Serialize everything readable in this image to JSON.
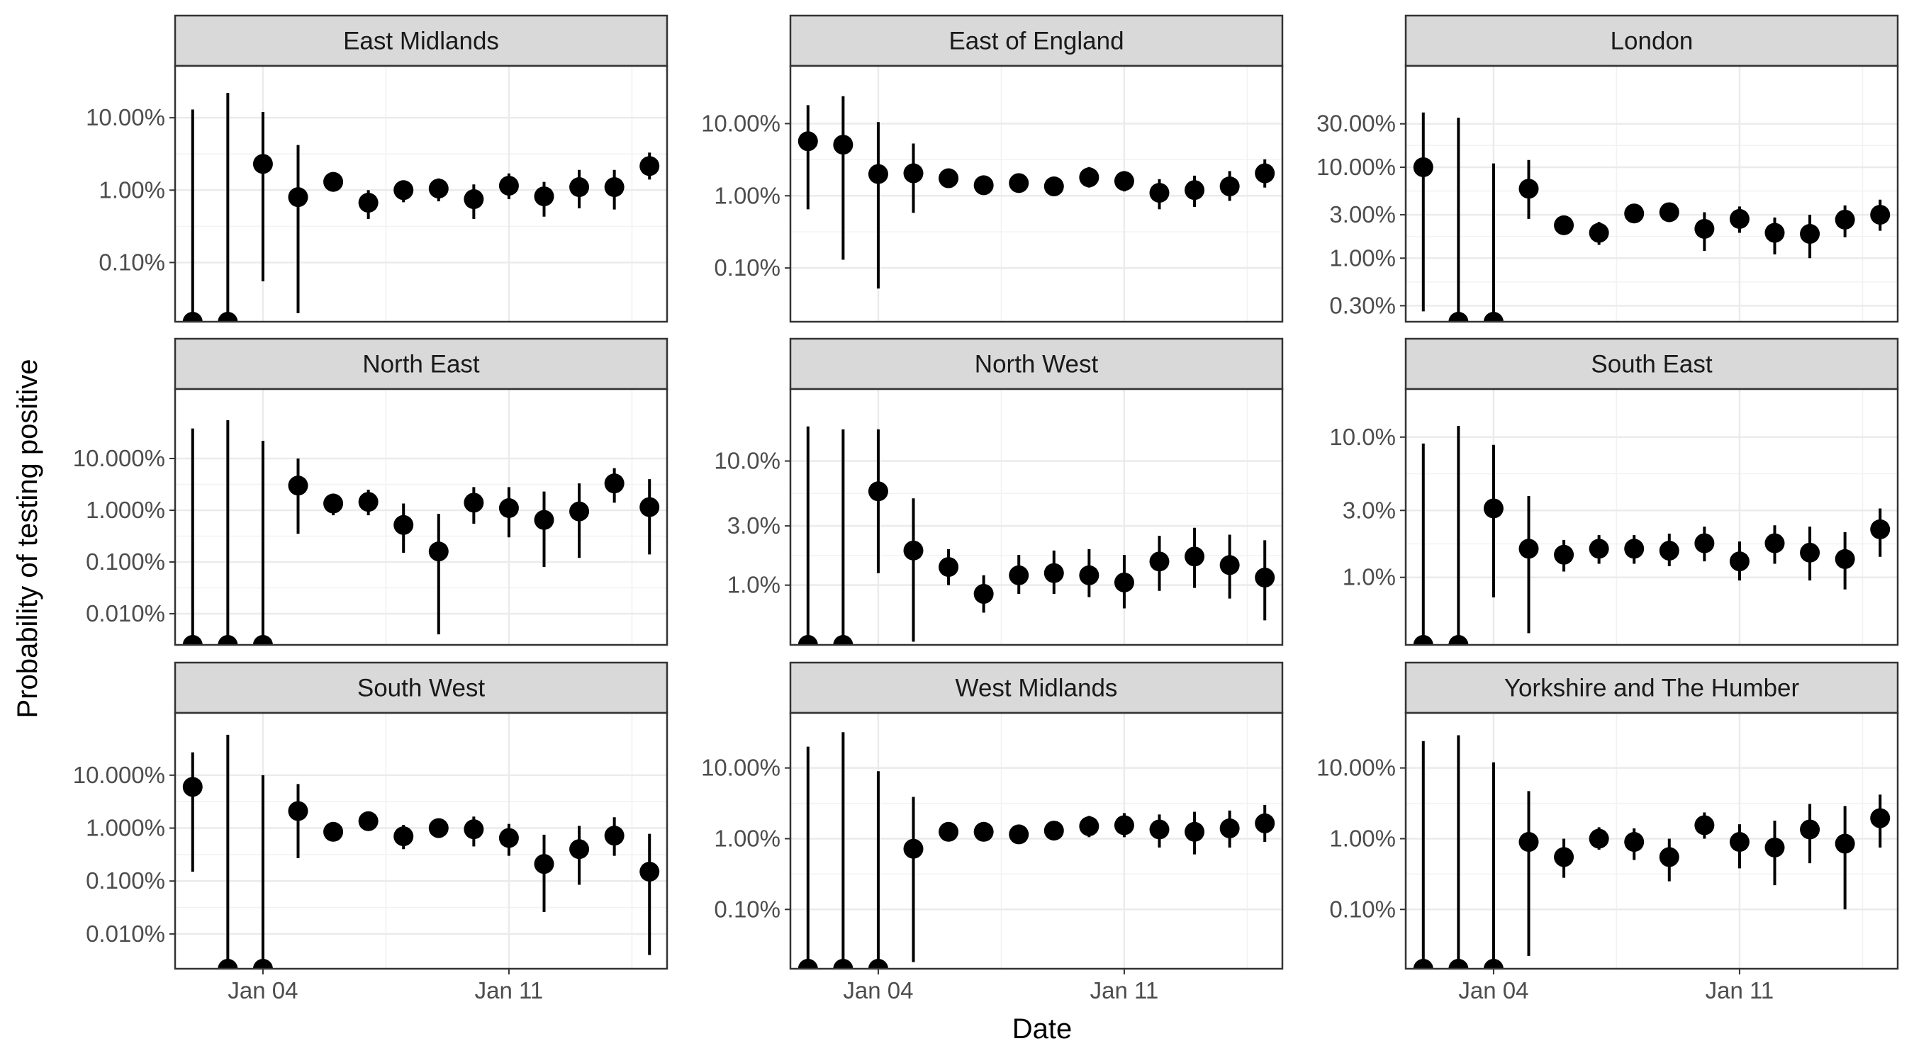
{
  "chart_data": {
    "type": "scatter",
    "ylabel": "Probability of testing positive",
    "xlabel": "Date",
    "x_tick_labels": [
      "Jan 04",
      "Jan 11"
    ],
    "x_tick_days": [
      4,
      11
    ],
    "x_range_days": [
      1.5,
      15.5
    ],
    "y_scale": "log10",
    "grid": true,
    "facets": [
      {
        "label": "East Midlands",
        "ylim_percent": [
          0.0152,
          52
        ],
        "y_ticks": [
          {
            "value": 0.1,
            "label": "0.10%"
          },
          {
            "value": 1,
            "label": "1.00%"
          },
          {
            "value": 10,
            "label": "10.00%"
          }
        ],
        "points": [
          {
            "day": 2,
            "est": 0.0152,
            "lo": 0.0152,
            "hi": 13
          },
          {
            "day": 3,
            "est": 0.0152,
            "lo": 0.0152,
            "hi": 22
          },
          {
            "day": 4,
            "est": 2.3,
            "lo": 0.055,
            "hi": 12
          },
          {
            "day": 5,
            "est": 0.8,
            "lo": 0.02,
            "hi": 4.2
          },
          {
            "day": 6,
            "est": 1.3,
            "lo": 0.95,
            "hi": 1.7
          },
          {
            "day": 7,
            "est": 0.67,
            "lo": 0.4,
            "hi": 1.0
          },
          {
            "day": 8,
            "est": 1.0,
            "lo": 0.68,
            "hi": 1.35
          },
          {
            "day": 9,
            "est": 1.05,
            "lo": 0.7,
            "hi": 1.45
          },
          {
            "day": 10,
            "est": 0.75,
            "lo": 0.4,
            "hi": 1.2
          },
          {
            "day": 11,
            "est": 1.15,
            "lo": 0.75,
            "hi": 1.7
          },
          {
            "day": 12,
            "est": 0.82,
            "lo": 0.43,
            "hi": 1.3
          },
          {
            "day": 13,
            "est": 1.1,
            "lo": 0.56,
            "hi": 1.9
          },
          {
            "day": 14,
            "est": 1.1,
            "lo": 0.54,
            "hi": 1.9
          },
          {
            "day": 15,
            "est": 2.15,
            "lo": 1.4,
            "hi": 3.3
          }
        ]
      },
      {
        "label": "East of England",
        "ylim_percent": [
          0.018,
          63
        ],
        "y_ticks": [
          {
            "value": 0.1,
            "label": "0.10%"
          },
          {
            "value": 1,
            "label": "1.00%"
          },
          {
            "value": 10,
            "label": "10.00%"
          }
        ],
        "points": [
          {
            "day": 2,
            "est": 5.7,
            "lo": 0.65,
            "hi": 18
          },
          {
            "day": 3,
            "est": 5.1,
            "lo": 0.13,
            "hi": 24
          },
          {
            "day": 4,
            "est": 2.0,
            "lo": 0.052,
            "hi": 10.5
          },
          {
            "day": 5,
            "est": 2.05,
            "lo": 0.58,
            "hi": 5.3
          },
          {
            "day": 6,
            "est": 1.75,
            "lo": 1.45,
            "hi": 2.1
          },
          {
            "day": 7,
            "est": 1.4,
            "lo": 1.15,
            "hi": 1.7
          },
          {
            "day": 8,
            "est": 1.5,
            "lo": 1.2,
            "hi": 1.9
          },
          {
            "day": 9,
            "est": 1.35,
            "lo": 1.05,
            "hi": 1.75
          },
          {
            "day": 10,
            "est": 1.8,
            "lo": 1.3,
            "hi": 2.5
          },
          {
            "day": 11,
            "est": 1.6,
            "lo": 1.15,
            "hi": 2.2
          },
          {
            "day": 12,
            "est": 1.1,
            "lo": 0.65,
            "hi": 1.7
          },
          {
            "day": 13,
            "est": 1.2,
            "lo": 0.7,
            "hi": 1.9
          },
          {
            "day": 14,
            "est": 1.35,
            "lo": 0.85,
            "hi": 2.2
          },
          {
            "day": 15,
            "est": 2.05,
            "lo": 1.3,
            "hi": 3.2
          }
        ]
      },
      {
        "label": "London",
        "ylim_percent": [
          0.2,
          130
        ],
        "y_ticks": [
          {
            "value": 0.3,
            "label": "0.30%"
          },
          {
            "value": 1,
            "label": "1.00%"
          },
          {
            "value": 3,
            "label": "3.00%"
          },
          {
            "value": 10,
            "label": "10.00%"
          },
          {
            "value": 30,
            "label": "30.00%"
          }
        ],
        "points": [
          {
            "day": 2,
            "est": 10.0,
            "lo": 0.26,
            "hi": 40
          },
          {
            "day": 3,
            "est": 0.2,
            "lo": 0.2,
            "hi": 35
          },
          {
            "day": 4,
            "est": 0.2,
            "lo": 0.2,
            "hi": 11
          },
          {
            "day": 5,
            "est": 5.8,
            "lo": 2.7,
            "hi": 12
          },
          {
            "day": 6,
            "est": 2.3,
            "lo": 1.8,
            "hi": 2.9
          },
          {
            "day": 7,
            "est": 1.9,
            "lo": 1.4,
            "hi": 2.5
          },
          {
            "day": 8,
            "est": 3.1,
            "lo": 2.5,
            "hi": 3.8
          },
          {
            "day": 9,
            "est": 3.2,
            "lo": 2.5,
            "hi": 4.0
          },
          {
            "day": 10,
            "est": 2.1,
            "lo": 1.2,
            "hi": 3.2
          },
          {
            "day": 11,
            "est": 2.7,
            "lo": 1.9,
            "hi": 3.7
          },
          {
            "day": 12,
            "est": 1.9,
            "lo": 1.1,
            "hi": 2.8
          },
          {
            "day": 13,
            "est": 1.85,
            "lo": 1.0,
            "hi": 3.0
          },
          {
            "day": 14,
            "est": 2.65,
            "lo": 1.7,
            "hi": 3.8
          },
          {
            "day": 15,
            "est": 3.0,
            "lo": 2.0,
            "hi": 4.4
          }
        ]
      },
      {
        "label": "North East",
        "ylim_percent": [
          0.0025,
          220
        ],
        "y_ticks": [
          {
            "value": 0.01,
            "label": "0.010%"
          },
          {
            "value": 0.1,
            "label": "0.100%"
          },
          {
            "value": 1,
            "label": "1.000%"
          },
          {
            "value": 10,
            "label": "10.000%"
          }
        ],
        "points": [
          {
            "day": 2,
            "est": 0.0025,
            "lo": 0.0025,
            "hi": 38
          },
          {
            "day": 3,
            "est": 0.0025,
            "lo": 0.0025,
            "hi": 55
          },
          {
            "day": 4,
            "est": 0.0025,
            "lo": 0.0025,
            "hi": 22
          },
          {
            "day": 5,
            "est": 3.0,
            "lo": 0.35,
            "hi": 10
          },
          {
            "day": 6,
            "est": 1.35,
            "lo": 0.8,
            "hi": 2.1
          },
          {
            "day": 7,
            "est": 1.45,
            "lo": 0.8,
            "hi": 2.5
          },
          {
            "day": 8,
            "est": 0.52,
            "lo": 0.15,
            "hi": 1.35
          },
          {
            "day": 9,
            "est": 0.16,
            "lo": 0.004,
            "hi": 0.85
          },
          {
            "day": 10,
            "est": 1.4,
            "lo": 0.55,
            "hi": 2.8
          },
          {
            "day": 11,
            "est": 1.1,
            "lo": 0.3,
            "hi": 2.8
          },
          {
            "day": 12,
            "est": 0.65,
            "lo": 0.08,
            "hi": 2.3
          },
          {
            "day": 13,
            "est": 0.95,
            "lo": 0.12,
            "hi": 3.3
          },
          {
            "day": 14,
            "est": 3.3,
            "lo": 1.4,
            "hi": 6.5
          },
          {
            "day": 15,
            "est": 1.15,
            "lo": 0.14,
            "hi": 4.0
          }
        ]
      },
      {
        "label": "North West",
        "ylim_percent": [
          0.33,
          38
        ],
        "y_ticks": [
          {
            "value": 1,
            "label": "1.0%"
          },
          {
            "value": 3,
            "label": "3.0%"
          },
          {
            "value": 10,
            "label": "10.0%"
          }
        ],
        "points": [
          {
            "day": 2,
            "est": 0.33,
            "lo": 0.33,
            "hi": 19
          },
          {
            "day": 3,
            "est": 0.33,
            "lo": 0.33,
            "hi": 18
          },
          {
            "day": 4,
            "est": 5.7,
            "lo": 1.25,
            "hi": 18
          },
          {
            "day": 5,
            "est": 1.9,
            "lo": 0.35,
            "hi": 5.0
          },
          {
            "day": 6,
            "est": 1.4,
            "lo": 1.0,
            "hi": 1.95
          },
          {
            "day": 7,
            "est": 0.85,
            "lo": 0.6,
            "hi": 1.2
          },
          {
            "day": 8,
            "est": 1.2,
            "lo": 0.85,
            "hi": 1.75
          },
          {
            "day": 9,
            "est": 1.25,
            "lo": 0.85,
            "hi": 1.9
          },
          {
            "day": 10,
            "est": 1.2,
            "lo": 0.8,
            "hi": 1.95
          },
          {
            "day": 11,
            "est": 1.05,
            "lo": 0.65,
            "hi": 1.75
          },
          {
            "day": 12,
            "est": 1.55,
            "lo": 0.9,
            "hi": 2.5
          },
          {
            "day": 13,
            "est": 1.7,
            "lo": 0.95,
            "hi": 2.9
          },
          {
            "day": 14,
            "est": 1.45,
            "lo": 0.78,
            "hi": 2.55
          },
          {
            "day": 15,
            "est": 1.15,
            "lo": 0.52,
            "hi": 2.3
          }
        ]
      },
      {
        "label": "South East",
        "ylim_percent": [
          0.33,
          22
        ],
        "y_ticks": [
          {
            "value": 1,
            "label": "1.0%"
          },
          {
            "value": 3,
            "label": "3.0%"
          },
          {
            "value": 10,
            "label": "10.0%"
          }
        ],
        "points": [
          {
            "day": 2,
            "est": 0.33,
            "lo": 0.33,
            "hi": 9.0
          },
          {
            "day": 3,
            "est": 0.33,
            "lo": 0.33,
            "hi": 12
          },
          {
            "day": 4,
            "est": 3.1,
            "lo": 0.72,
            "hi": 8.8
          },
          {
            "day": 5,
            "est": 1.6,
            "lo": 0.4,
            "hi": 3.8
          },
          {
            "day": 6,
            "est": 1.45,
            "lo": 1.1,
            "hi": 1.85
          },
          {
            "day": 7,
            "est": 1.6,
            "lo": 1.25,
            "hi": 2.0
          },
          {
            "day": 8,
            "est": 1.6,
            "lo": 1.25,
            "hi": 2.0
          },
          {
            "day": 9,
            "est": 1.55,
            "lo": 1.2,
            "hi": 2.05
          },
          {
            "day": 10,
            "est": 1.75,
            "lo": 1.3,
            "hi": 2.3
          },
          {
            "day": 11,
            "est": 1.3,
            "lo": 0.95,
            "hi": 1.8
          },
          {
            "day": 12,
            "est": 1.75,
            "lo": 1.25,
            "hi": 2.35
          },
          {
            "day": 13,
            "est": 1.5,
            "lo": 0.95,
            "hi": 2.3
          },
          {
            "day": 14,
            "est": 1.35,
            "lo": 0.82,
            "hi": 2.1
          },
          {
            "day": 15,
            "est": 2.2,
            "lo": 1.4,
            "hi": 3.1
          }
        ]
      },
      {
        "label": "South West",
        "ylim_percent": [
          0.0022,
          150
        ],
        "y_ticks": [
          {
            "value": 0.01,
            "label": "0.010%"
          },
          {
            "value": 0.1,
            "label": "0.100%"
          },
          {
            "value": 1,
            "label": "1.000%"
          },
          {
            "value": 10,
            "label": "10.000%"
          }
        ],
        "points": [
          {
            "day": 2,
            "est": 6.0,
            "lo": 0.15,
            "hi": 27
          },
          {
            "day": 3,
            "est": 0.0022,
            "lo": 0.0022,
            "hi": 58
          },
          {
            "day": 4,
            "est": 0.0022,
            "lo": 0.0022,
            "hi": 10
          },
          {
            "day": 5,
            "est": 2.1,
            "lo": 0.27,
            "hi": 6.8
          },
          {
            "day": 6,
            "est": 0.85,
            "lo": 0.6,
            "hi": 1.2
          },
          {
            "day": 7,
            "est": 1.35,
            "lo": 1.05,
            "hi": 1.75
          },
          {
            "day": 8,
            "est": 0.7,
            "lo": 0.4,
            "hi": 1.15
          },
          {
            "day": 9,
            "est": 1.0,
            "lo": 0.65,
            "hi": 1.5
          },
          {
            "day": 10,
            "est": 0.95,
            "lo": 0.45,
            "hi": 1.65
          },
          {
            "day": 11,
            "est": 0.65,
            "lo": 0.3,
            "hi": 1.2
          },
          {
            "day": 12,
            "est": 0.21,
            "lo": 0.026,
            "hi": 0.75
          },
          {
            "day": 13,
            "est": 0.4,
            "lo": 0.085,
            "hi": 1.1
          },
          {
            "day": 14,
            "est": 0.72,
            "lo": 0.3,
            "hi": 1.6
          },
          {
            "day": 15,
            "est": 0.15,
            "lo": 0.004,
            "hi": 0.78
          }
        ]
      },
      {
        "label": "West Midlands",
        "ylim_percent": [
          0.0145,
          60
        ],
        "y_ticks": [
          {
            "value": 0.1,
            "label": "0.10%"
          },
          {
            "value": 1,
            "label": "1.00%"
          },
          {
            "value": 10,
            "label": "10.00%"
          }
        ],
        "points": [
          {
            "day": 2,
            "est": 0.0145,
            "lo": 0.0145,
            "hi": 20
          },
          {
            "day": 3,
            "est": 0.0145,
            "lo": 0.0145,
            "hi": 32
          },
          {
            "day": 4,
            "est": 0.0145,
            "lo": 0.0145,
            "hi": 9.0
          },
          {
            "day": 5,
            "est": 0.72,
            "lo": 0.018,
            "hi": 3.9
          },
          {
            "day": 6,
            "est": 1.25,
            "lo": 0.95,
            "hi": 1.65
          },
          {
            "day": 7,
            "est": 1.25,
            "lo": 0.95,
            "hi": 1.65
          },
          {
            "day": 8,
            "est": 1.15,
            "lo": 0.85,
            "hi": 1.55
          },
          {
            "day": 9,
            "est": 1.3,
            "lo": 1.0,
            "hi": 1.7
          },
          {
            "day": 10,
            "est": 1.5,
            "lo": 1.05,
            "hi": 2.1
          },
          {
            "day": 11,
            "est": 1.55,
            "lo": 1.05,
            "hi": 2.3
          },
          {
            "day": 12,
            "est": 1.35,
            "lo": 0.75,
            "hi": 2.2
          },
          {
            "day": 13,
            "est": 1.25,
            "lo": 0.6,
            "hi": 2.4
          },
          {
            "day": 14,
            "est": 1.4,
            "lo": 0.75,
            "hi": 2.5
          },
          {
            "day": 15,
            "est": 1.65,
            "lo": 0.9,
            "hi": 3.0
          }
        ]
      },
      {
        "label": "Yorkshire and The Humber",
        "ylim_percent": [
          0.0145,
          60
        ],
        "y_ticks": [
          {
            "value": 0.1,
            "label": "0.10%"
          },
          {
            "value": 1,
            "label": "1.00%"
          },
          {
            "value": 10,
            "label": "10.00%"
          }
        ],
        "points": [
          {
            "day": 2,
            "est": 0.0145,
            "lo": 0.0145,
            "hi": 24
          },
          {
            "day": 3,
            "est": 0.0145,
            "lo": 0.0145,
            "hi": 29
          },
          {
            "day": 4,
            "est": 0.0145,
            "lo": 0.0145,
            "hi": 12
          },
          {
            "day": 5,
            "est": 0.9,
            "lo": 0.022,
            "hi": 4.7
          },
          {
            "day": 6,
            "est": 0.55,
            "lo": 0.28,
            "hi": 1.0
          },
          {
            "day": 7,
            "est": 1.0,
            "lo": 0.7,
            "hi": 1.45
          },
          {
            "day": 8,
            "est": 0.9,
            "lo": 0.5,
            "hi": 1.4
          },
          {
            "day": 9,
            "est": 0.55,
            "lo": 0.25,
            "hi": 1.0
          },
          {
            "day": 10,
            "est": 1.55,
            "lo": 1.0,
            "hi": 2.35
          },
          {
            "day": 11,
            "est": 0.9,
            "lo": 0.38,
            "hi": 1.6
          },
          {
            "day": 12,
            "est": 0.75,
            "lo": 0.22,
            "hi": 1.8
          },
          {
            "day": 13,
            "est": 1.35,
            "lo": 0.45,
            "hi": 3.1
          },
          {
            "day": 14,
            "est": 0.85,
            "lo": 0.1,
            "hi": 2.9
          },
          {
            "day": 15,
            "est": 1.95,
            "lo": 0.75,
            "hi": 4.2
          }
        ]
      }
    ]
  }
}
